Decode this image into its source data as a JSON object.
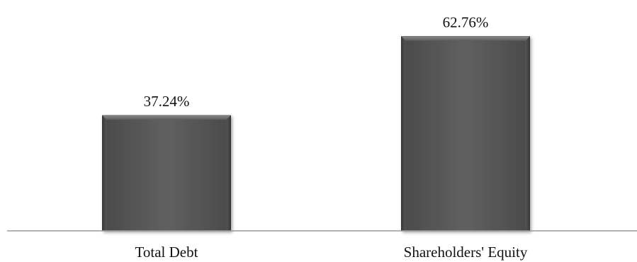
{
  "chart_data": {
    "type": "bar",
    "title": "",
    "xlabel": "",
    "ylabel": "",
    "categories": [
      "Total Debt",
      "Shareholders' Equity"
    ],
    "values": [
      37.24,
      62.76
    ],
    "value_labels": [
      "37.24%",
      "62.76%"
    ],
    "unit": "%",
    "ylim": [
      0,
      70
    ],
    "grid": false,
    "legend": "none",
    "bar_color": "#5a5a5a",
    "bar_edge_color": "#2f2f2f",
    "axis_color": "#9a9a9a"
  }
}
